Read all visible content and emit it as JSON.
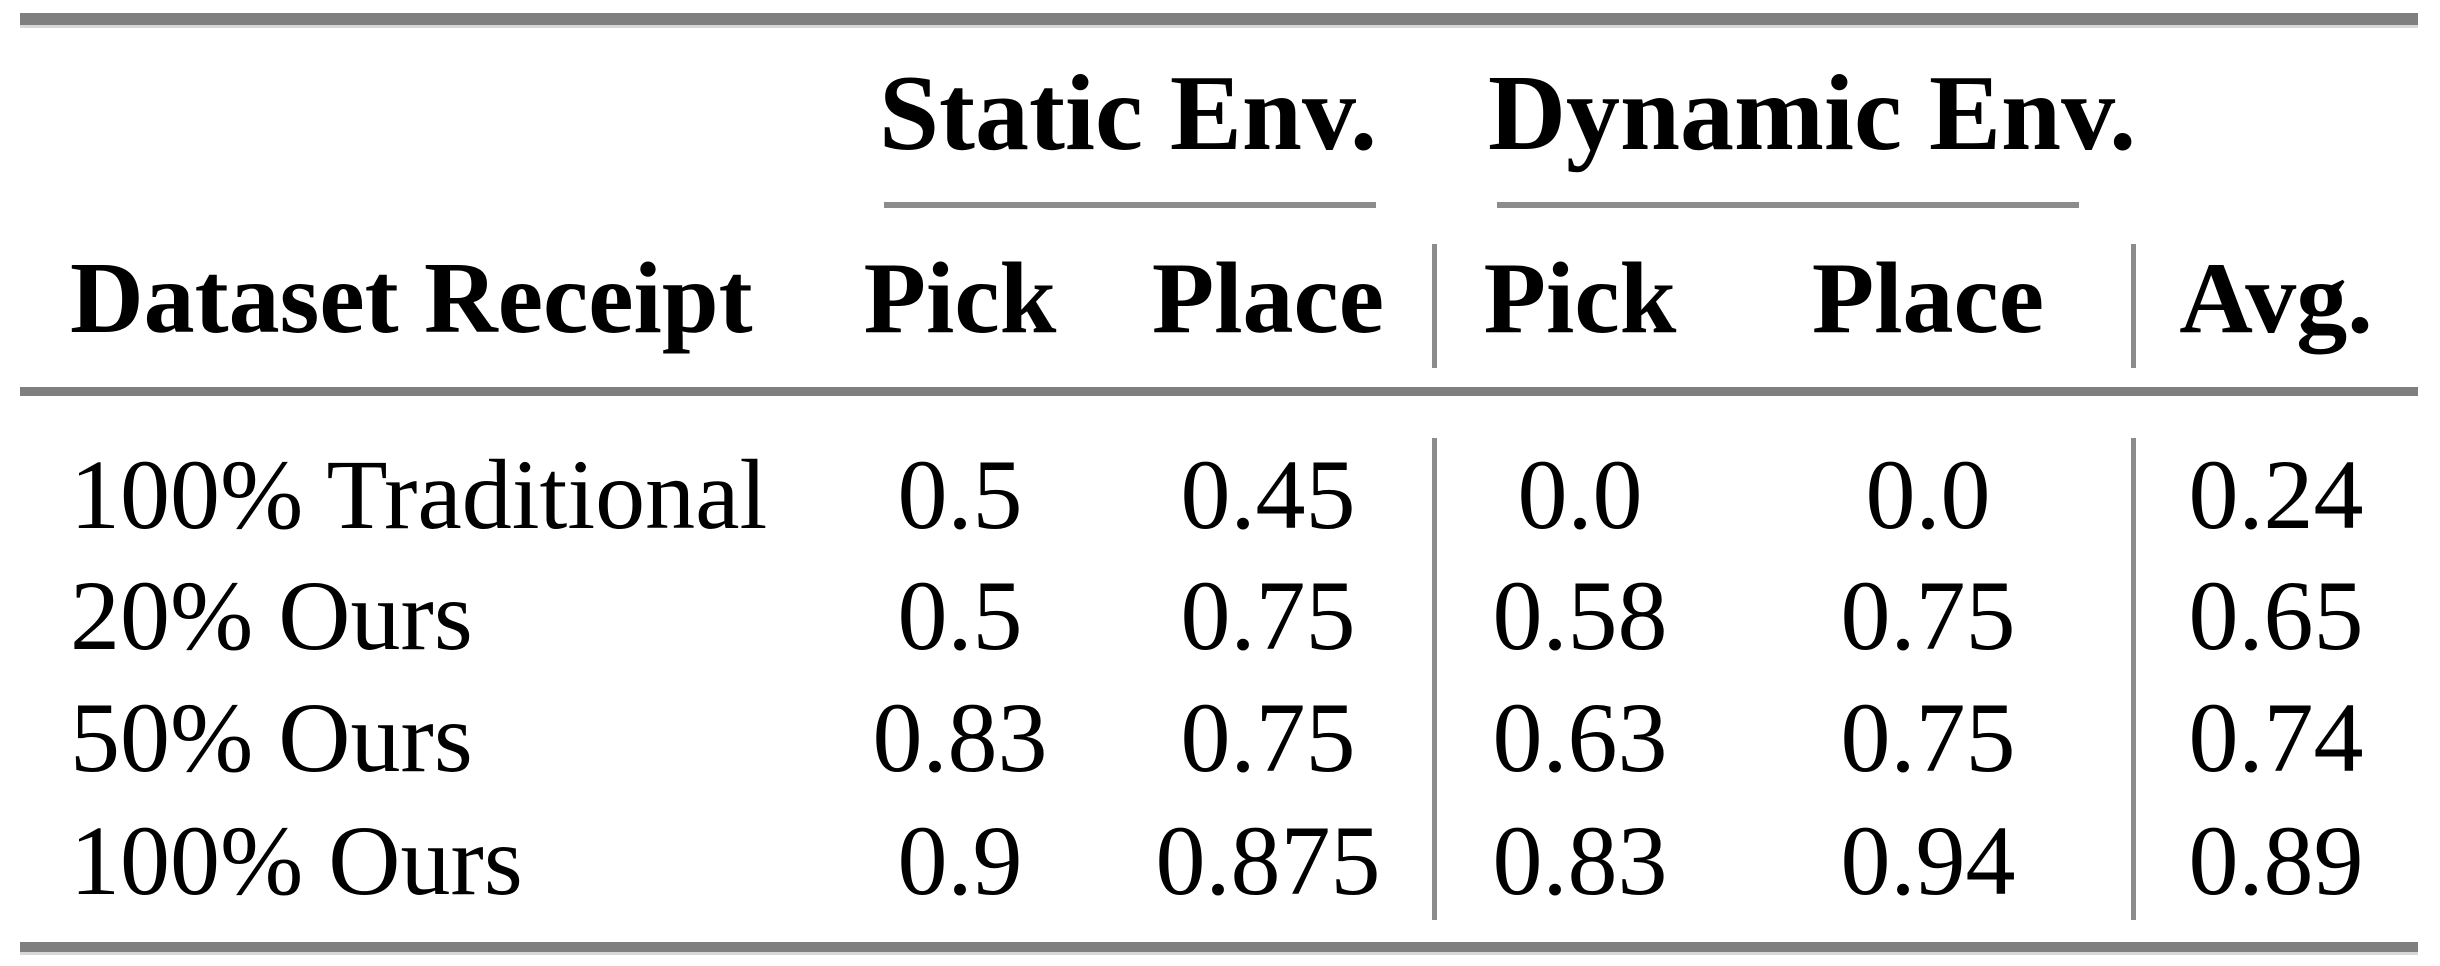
{
  "table": {
    "group_headers": [
      {
        "label": "Static Env."
      },
      {
        "label": "Dynamic Env."
      }
    ],
    "column_headers": {
      "row_label": "Dataset Receipt",
      "static_pick": "Pick",
      "static_place": "Place",
      "dynamic_pick": "Pick",
      "dynamic_place": "Place",
      "avg": "Avg."
    },
    "rows": [
      {
        "label": "100% Traditional",
        "static_pick": "0.5",
        "static_place": "0.45",
        "dynamic_pick": "0.0",
        "dynamic_place": "0.0",
        "avg": "0.24"
      },
      {
        "label": "20% Ours",
        "static_pick": "0.5",
        "static_place": "0.75",
        "dynamic_pick": "0.58",
        "dynamic_place": "0.75",
        "avg": "0.65"
      },
      {
        "label": "50% Ours",
        "static_pick": "0.83",
        "static_place": "0.75",
        "dynamic_pick": "0.63",
        "dynamic_place": "0.75",
        "avg": "0.74"
      },
      {
        "label": "100% Ours",
        "static_pick": "0.9",
        "static_place": "0.875",
        "dynamic_pick": "0.83",
        "dynamic_place": "0.94",
        "avg": "0.89"
      }
    ],
    "colors": {
      "rule_gray": "#7f7f7f",
      "rule_light": "#d8d8d8",
      "separator_gray": "#8c8c8c",
      "text": "#000000"
    }
  },
  "chart_data": {
    "type": "table",
    "columns": [
      "Dataset Receipt",
      "Static Env. Pick",
      "Static Env. Place",
      "Dynamic Env. Pick",
      "Dynamic Env. Place",
      "Avg."
    ],
    "rows": [
      [
        "100% Traditional",
        0.5,
        0.45,
        0.0,
        0.0,
        0.24
      ],
      [
        "20% Ours",
        0.5,
        0.75,
        0.58,
        0.75,
        0.65
      ],
      [
        "50% Ours",
        0.83,
        0.75,
        0.63,
        0.75,
        0.74
      ],
      [
        "100% Ours",
        0.9,
        0.875,
        0.83,
        0.94,
        0.89
      ]
    ]
  }
}
